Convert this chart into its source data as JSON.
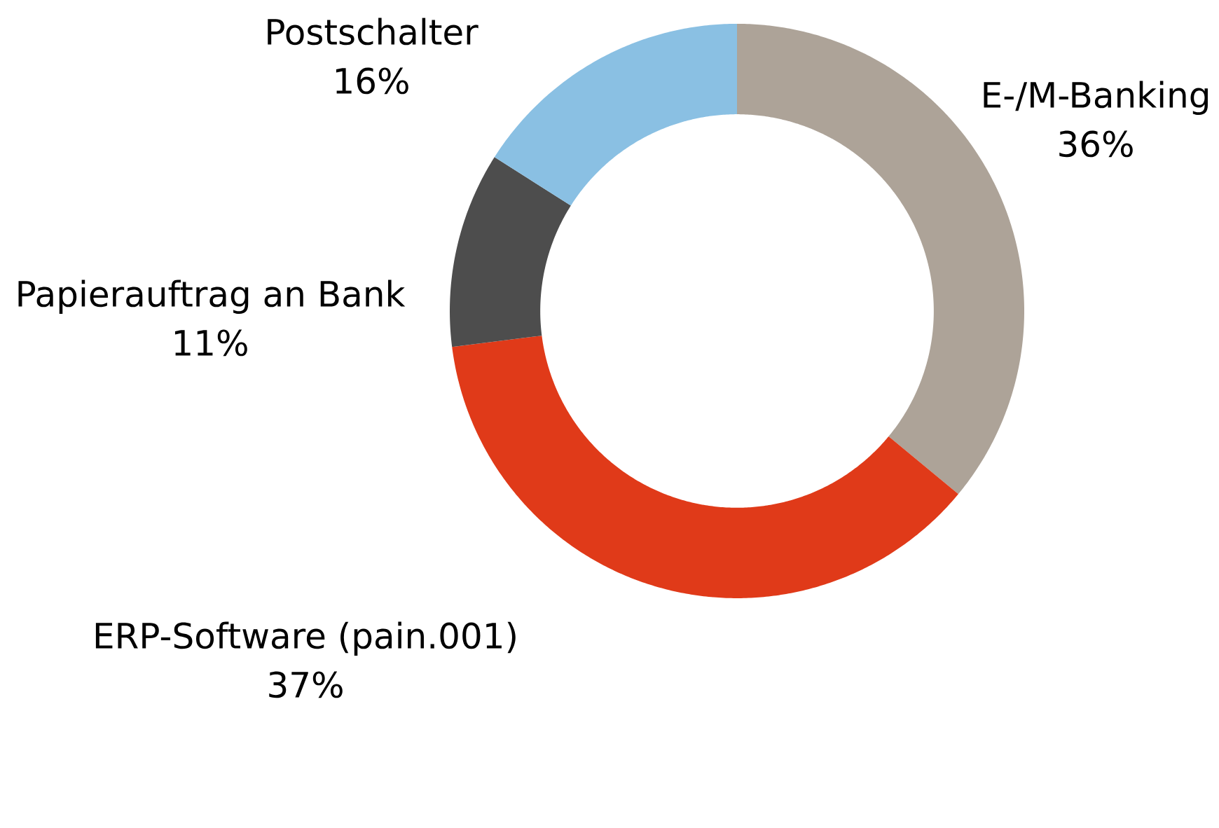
{
  "chart_data": {
    "type": "donut",
    "categories": [
      "E-/M-Banking",
      "ERP-Software (pain.001)",
      "Papierauftrag an Bank",
      "Postschalter"
    ],
    "values": [
      36,
      37,
      11,
      16
    ],
    "value_labels": [
      "36%",
      "37%",
      "11%",
      "16%"
    ],
    "colors": [
      "#ada398",
      "#e03a19",
      "#4d4d4d",
      "#8ac0e3"
    ]
  }
}
